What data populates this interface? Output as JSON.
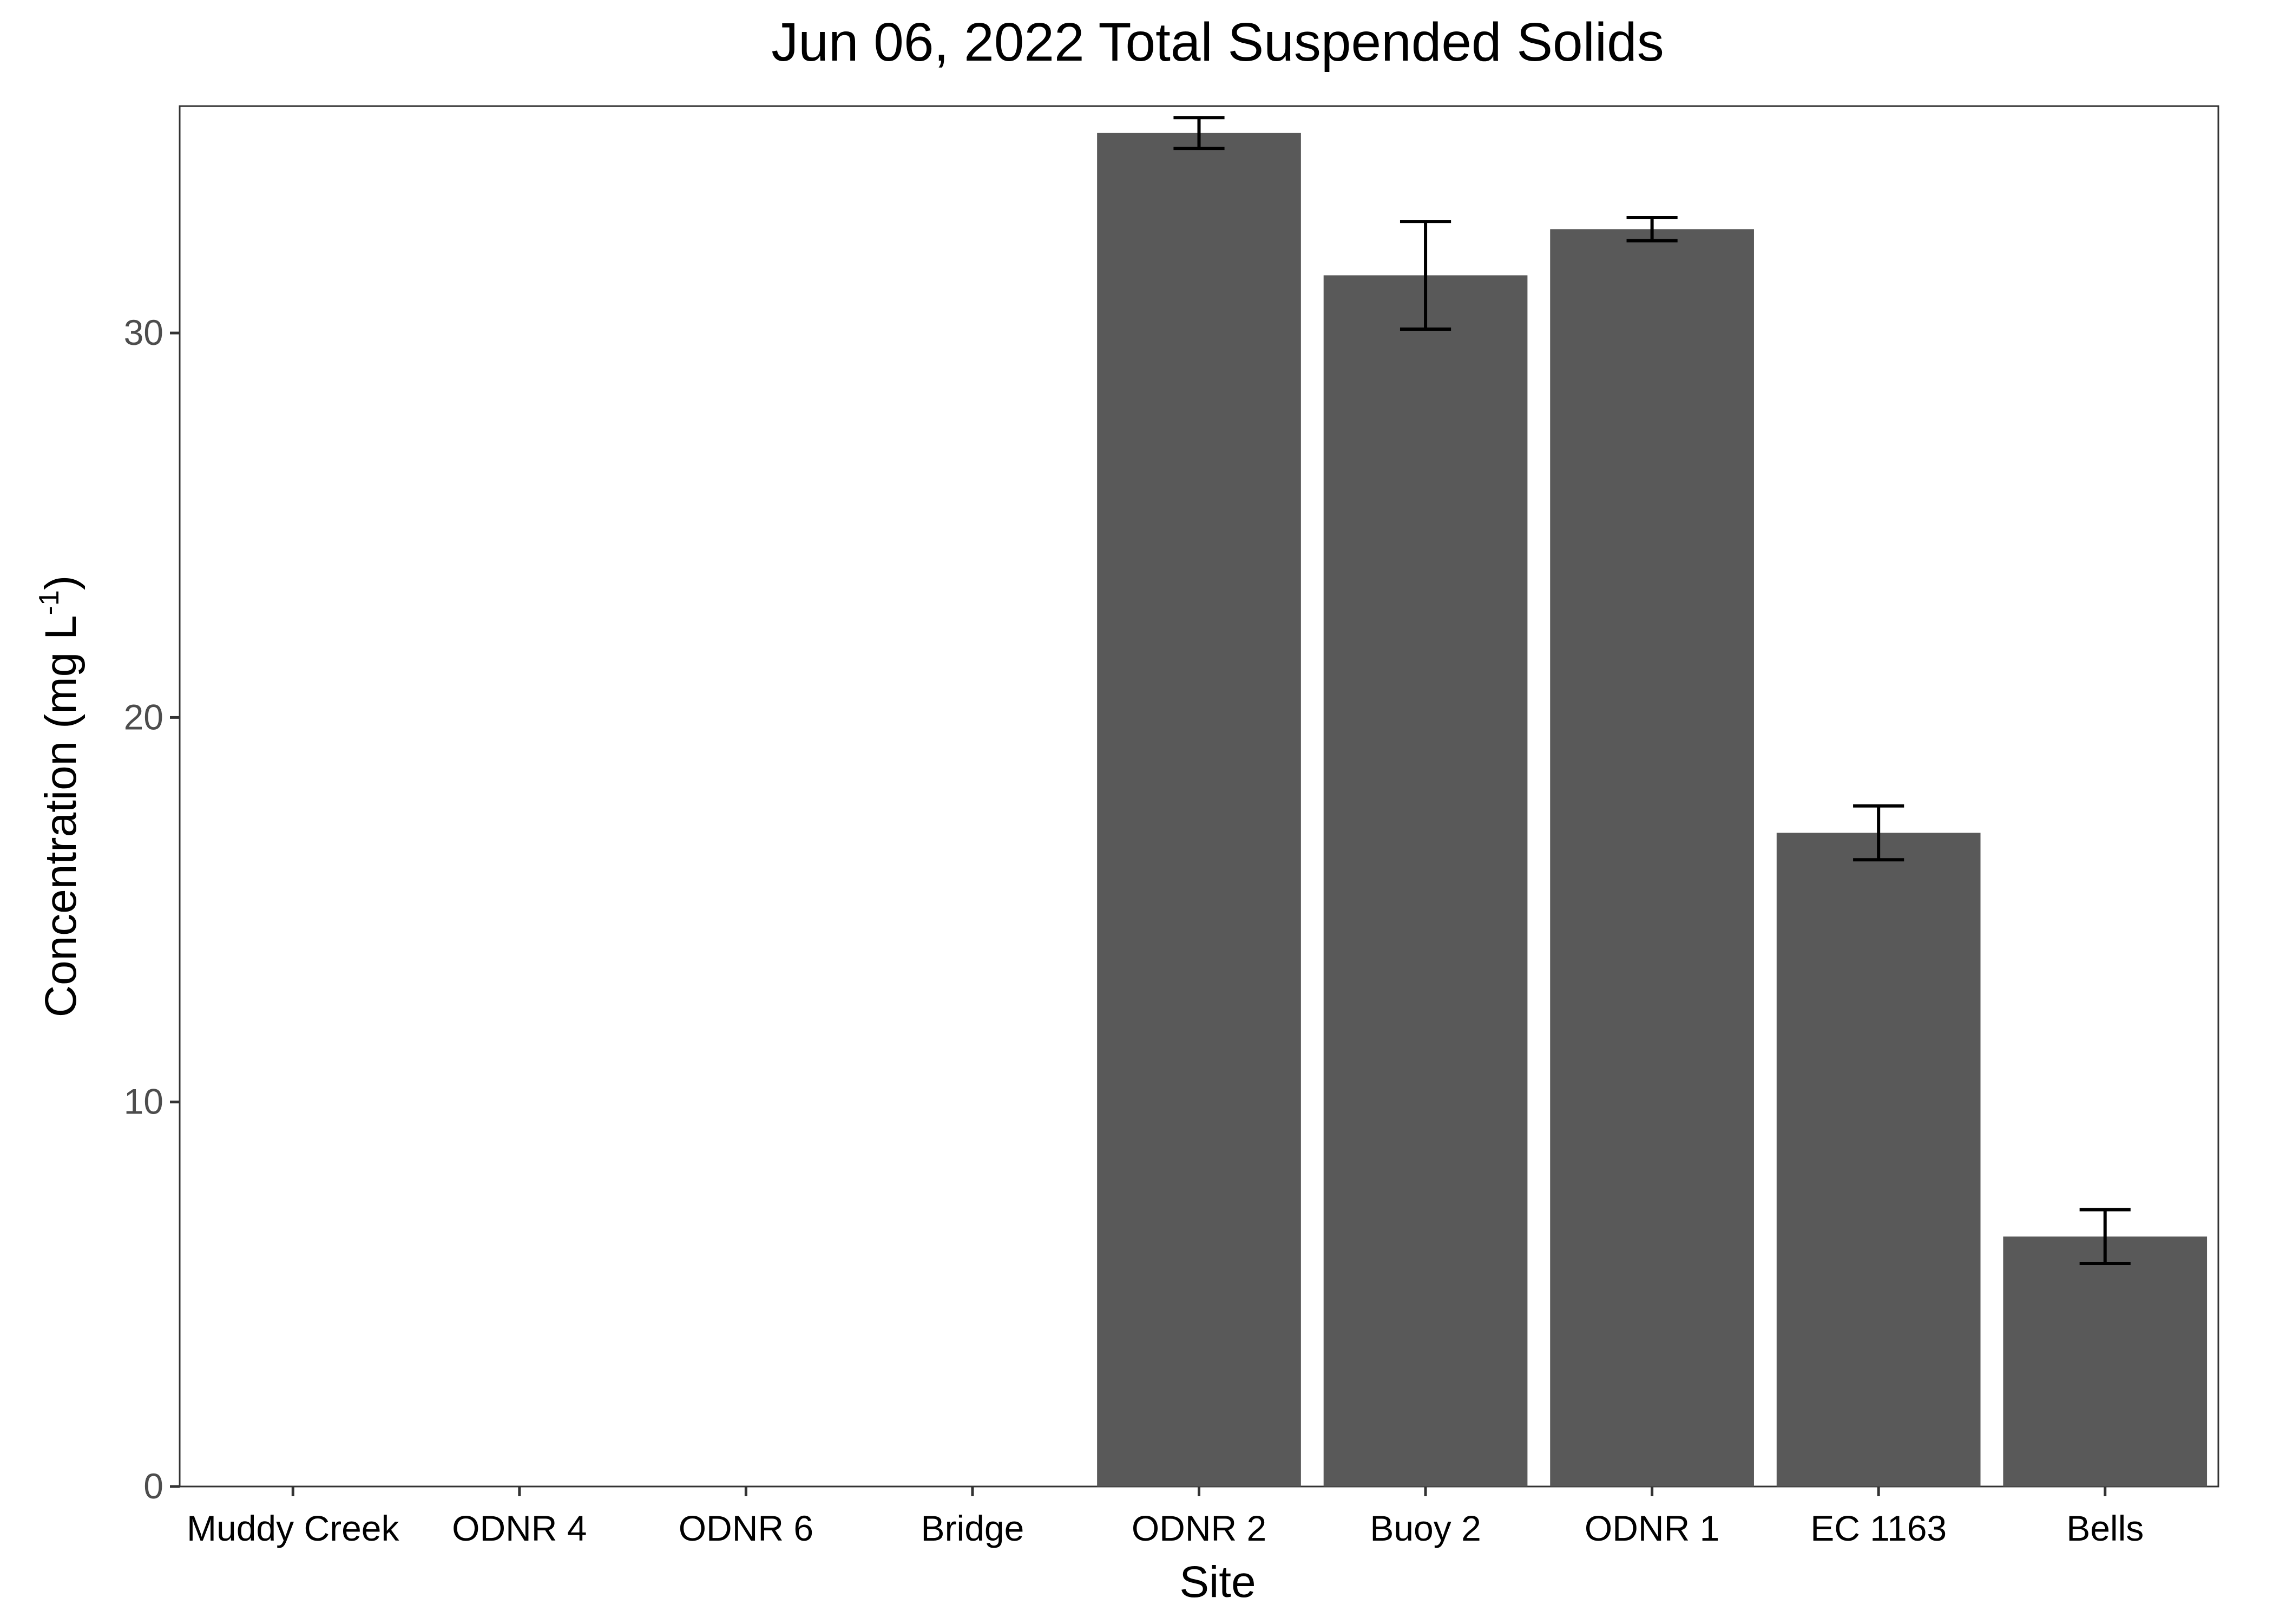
{
  "chart_data": {
    "type": "bar",
    "title": "Jun 06, 2022 Total Suspended Solids",
    "xlabel": "Site",
    "ylabel_main": "Concentration (mg L",
    "ylabel_sup": "-1",
    "ylabel_close": ")",
    "categories": [
      "Muddy Creek",
      "ODNR 4",
      "ODNR 6",
      "Bridge",
      "ODNR 2",
      "Buoy 2",
      "ODNR 1",
      "EC 1163",
      "Bells"
    ],
    "values": [
      null,
      null,
      null,
      null,
      35.2,
      31.5,
      32.7,
      17.0,
      6.5
    ],
    "error_low": [
      null,
      null,
      null,
      null,
      34.8,
      30.1,
      32.4,
      16.3,
      5.8
    ],
    "error_high": [
      null,
      null,
      null,
      null,
      35.6,
      32.9,
      33.0,
      17.7,
      7.2
    ],
    "ylim": [
      0,
      35.9
    ],
    "yticks": [
      0,
      10,
      20,
      30
    ],
    "grid": false,
    "bar_color": "#595959",
    "errorbar_color": "#000000"
  }
}
